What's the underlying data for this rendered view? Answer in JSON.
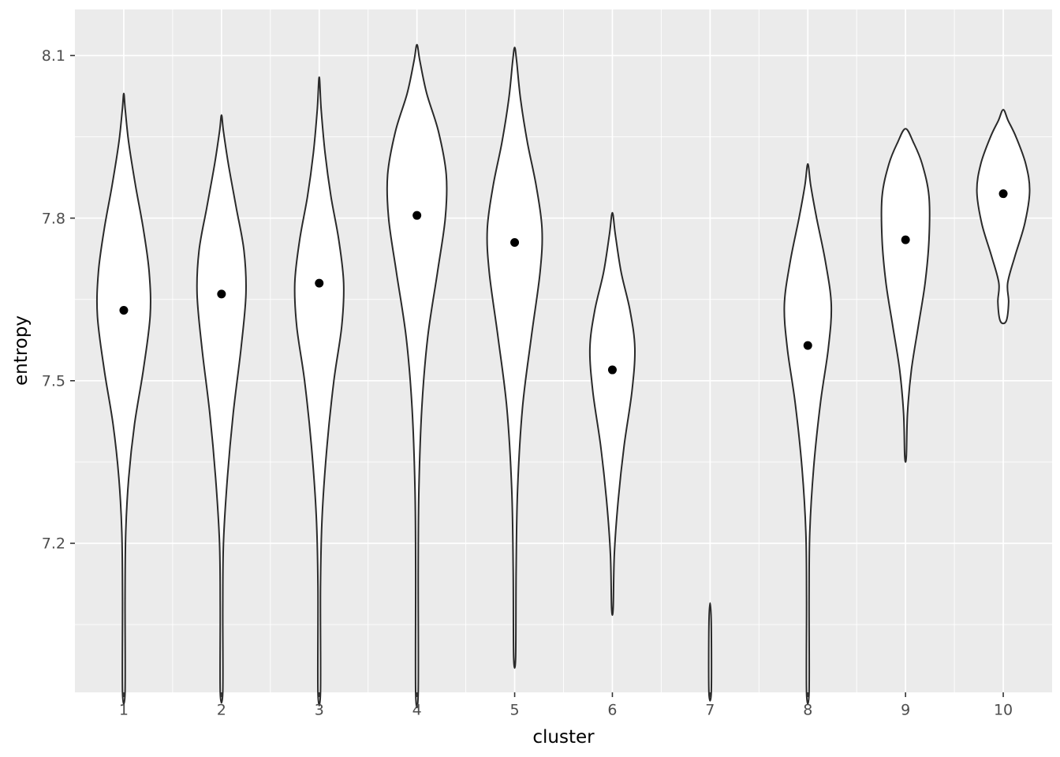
{
  "chart_data": {
    "type": "violin",
    "title": "",
    "xlabel": "cluster",
    "ylabel": "entropy",
    "x_categories": [
      "1",
      "2",
      "3",
      "4",
      "5",
      "6",
      "7",
      "8",
      "9",
      "10"
    ],
    "yticks": [
      7.2,
      7.5,
      7.8,
      8.1
    ],
    "ytick_labels": [
      "7.2",
      "7.5",
      "7.8",
      "8.1"
    ],
    "minor_yticks": [
      7.05,
      7.35,
      7.65,
      7.95
    ],
    "ylim": [
      6.925,
      8.185
    ],
    "panel_bg": "#EBEBEB",
    "grid_color": "#FFFFFF",
    "violin_stroke": "#2A2A2A",
    "violin_fill": "#FFFFFF",
    "point_color": "#000000",
    "tick_color": "#333333",
    "tick_label_color": "#4D4D4D",
    "legend": "none",
    "grid": "on",
    "series": [
      {
        "cluster": "1",
        "mean": 7.63,
        "profile": [
          [
            6.925,
            0.013
          ],
          [
            7.1,
            0.013
          ],
          [
            7.22,
            0.02
          ],
          [
            7.32,
            0.05
          ],
          [
            7.42,
            0.11
          ],
          [
            7.52,
            0.2
          ],
          [
            7.62,
            0.27
          ],
          [
            7.7,
            0.26
          ],
          [
            7.78,
            0.2
          ],
          [
            7.86,
            0.12
          ],
          [
            7.94,
            0.05
          ],
          [
            8.0,
            0.015
          ],
          [
            8.03,
            0.0
          ]
        ]
      },
      {
        "cluster": "2",
        "mean": 7.66,
        "profile": [
          [
            6.925,
            0.013
          ],
          [
            7.08,
            0.013
          ],
          [
            7.2,
            0.02
          ],
          [
            7.32,
            0.06
          ],
          [
            7.44,
            0.12
          ],
          [
            7.56,
            0.2
          ],
          [
            7.66,
            0.25
          ],
          [
            7.74,
            0.23
          ],
          [
            7.82,
            0.15
          ],
          [
            7.9,
            0.07
          ],
          [
            7.96,
            0.02
          ],
          [
            7.99,
            0.0
          ]
        ]
      },
      {
        "cluster": "3",
        "mean": 7.68,
        "profile": [
          [
            6.925,
            0.013
          ],
          [
            7.12,
            0.013
          ],
          [
            7.25,
            0.03
          ],
          [
            7.38,
            0.08
          ],
          [
            7.5,
            0.15
          ],
          [
            7.6,
            0.23
          ],
          [
            7.68,
            0.25
          ],
          [
            7.76,
            0.2
          ],
          [
            7.84,
            0.12
          ],
          [
            7.92,
            0.06
          ],
          [
            8.0,
            0.02
          ],
          [
            8.06,
            0.0
          ]
        ]
      },
      {
        "cluster": "4",
        "mean": 7.805,
        "profile": [
          [
            6.925,
            0.013
          ],
          [
            7.15,
            0.013
          ],
          [
            7.3,
            0.02
          ],
          [
            7.45,
            0.05
          ],
          [
            7.58,
            0.11
          ],
          [
            7.7,
            0.21
          ],
          [
            7.8,
            0.29
          ],
          [
            7.88,
            0.3
          ],
          [
            7.96,
            0.22
          ],
          [
            8.03,
            0.1
          ],
          [
            8.09,
            0.03
          ],
          [
            8.12,
            0.0
          ]
        ]
      },
      {
        "cluster": "5",
        "mean": 7.755,
        "profile": [
          [
            6.99,
            0.01
          ],
          [
            7.15,
            0.015
          ],
          [
            7.3,
            0.03
          ],
          [
            7.45,
            0.08
          ],
          [
            7.58,
            0.17
          ],
          [
            7.7,
            0.26
          ],
          [
            7.78,
            0.28
          ],
          [
            7.86,
            0.22
          ],
          [
            7.94,
            0.13
          ],
          [
            8.02,
            0.06
          ],
          [
            8.09,
            0.02
          ],
          [
            8.115,
            0.0
          ]
        ]
      },
      {
        "cluster": "6",
        "mean": 7.52,
        "profile": [
          [
            7.08,
            0.008
          ],
          [
            7.18,
            0.02
          ],
          [
            7.28,
            0.06
          ],
          [
            7.38,
            0.12
          ],
          [
            7.48,
            0.2
          ],
          [
            7.56,
            0.23
          ],
          [
            7.63,
            0.18
          ],
          [
            7.7,
            0.09
          ],
          [
            7.77,
            0.03
          ],
          [
            7.81,
            0.0
          ]
        ]
      },
      {
        "cluster": "7",
        "mean": null,
        "profile": [
          [
            6.925,
            0.012
          ],
          [
            7.05,
            0.012
          ],
          [
            7.09,
            0.0
          ]
        ]
      },
      {
        "cluster": "8",
        "mean": 7.565,
        "profile": [
          [
            6.925,
            0.013
          ],
          [
            7.1,
            0.013
          ],
          [
            7.22,
            0.02
          ],
          [
            7.34,
            0.06
          ],
          [
            7.46,
            0.13
          ],
          [
            7.56,
            0.21
          ],
          [
            7.64,
            0.24
          ],
          [
            7.72,
            0.18
          ],
          [
            7.8,
            0.09
          ],
          [
            7.86,
            0.03
          ],
          [
            7.9,
            0.0
          ]
        ]
      },
      {
        "cluster": "9",
        "mean": 7.76,
        "profile": [
          [
            7.36,
            0.008
          ],
          [
            7.44,
            0.02
          ],
          [
            7.52,
            0.06
          ],
          [
            7.6,
            0.13
          ],
          [
            7.68,
            0.2
          ],
          [
            7.76,
            0.24
          ],
          [
            7.84,
            0.24
          ],
          [
            7.9,
            0.17
          ],
          [
            7.94,
            0.08
          ],
          [
            7.965,
            0.0
          ]
        ]
      },
      {
        "cluster": "10",
        "mean": 7.845,
        "profile": [
          [
            7.61,
            0.03
          ],
          [
            7.645,
            0.055
          ],
          [
            7.68,
            0.045
          ],
          [
            7.73,
            0.12
          ],
          [
            7.79,
            0.22
          ],
          [
            7.85,
            0.27
          ],
          [
            7.9,
            0.23
          ],
          [
            7.95,
            0.13
          ],
          [
            7.98,
            0.05
          ],
          [
            8.0,
            0.0
          ]
        ]
      }
    ]
  }
}
